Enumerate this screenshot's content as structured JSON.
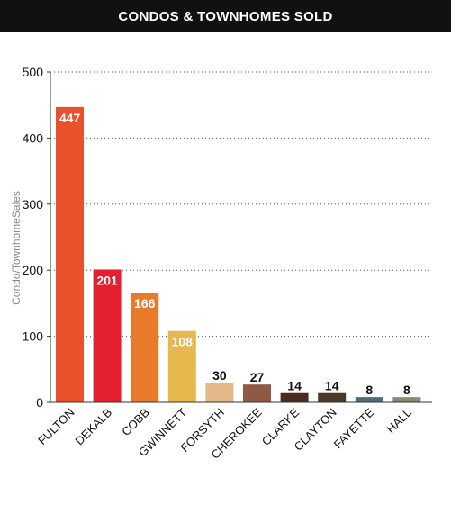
{
  "chart_data": {
    "type": "bar",
    "title": "CONDOS & TOWNHOMES SOLD",
    "ylabel": "Condo/TownhomeSales",
    "xlabel": "",
    "ylim": [
      0,
      500
    ],
    "yticks": [
      0,
      100,
      200,
      300,
      400,
      500
    ],
    "grid": true,
    "categories": [
      "FULTON",
      "DEKALB",
      "COBB",
      "GWINNETT",
      "FORSYTH",
      "CHEROKEE",
      "CLARKE",
      "CLAYTON",
      "FAYETTE",
      "HALL"
    ],
    "values": [
      447,
      201,
      166,
      108,
      30,
      27,
      14,
      14,
      8,
      8
    ],
    "colors": [
      "#e8512a",
      "#e3202f",
      "#e87a2a",
      "#e6b84e",
      "#e3b98a",
      "#8e5a44",
      "#4e2a20",
      "#4a3a26",
      "#4f6e7b",
      "#8c8872"
    ],
    "label_colors": [
      "#ffffff",
      "#ffffff",
      "#ffffff",
      "#ffffff",
      "#ffffff",
      "#ffffff",
      "#111111",
      "#111111",
      "#111111",
      "#111111"
    ]
  }
}
